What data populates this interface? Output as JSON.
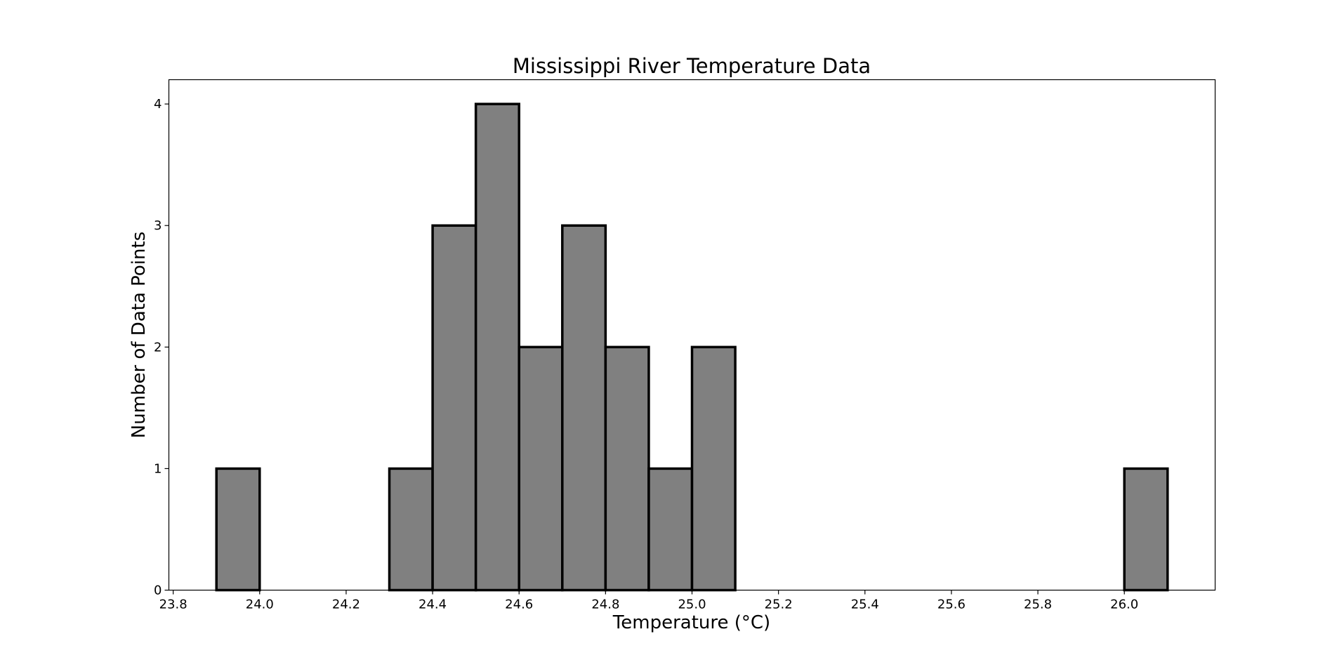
{
  "chart_data": {
    "type": "histogram",
    "title": "Mississippi River Temperature Data",
    "xlabel": "Temperature (°C)",
    "ylabel": "Number of Data Points",
    "bin_width": 0.1,
    "bins": [
      {
        "start": 23.9,
        "end": 24.0,
        "count": 1
      },
      {
        "start": 24.0,
        "end": 24.1,
        "count": 0
      },
      {
        "start": 24.1,
        "end": 24.2,
        "count": 0
      },
      {
        "start": 24.2,
        "end": 24.3,
        "count": 0
      },
      {
        "start": 24.3,
        "end": 24.4,
        "count": 1
      },
      {
        "start": 24.4,
        "end": 24.5,
        "count": 3
      },
      {
        "start": 24.5,
        "end": 24.6,
        "count": 4
      },
      {
        "start": 24.6,
        "end": 24.7,
        "count": 2
      },
      {
        "start": 24.7,
        "end": 24.8,
        "count": 3
      },
      {
        "start": 24.8,
        "end": 24.9,
        "count": 2
      },
      {
        "start": 24.9,
        "end": 25.0,
        "count": 1
      },
      {
        "start": 25.0,
        "end": 25.1,
        "count": 2
      },
      {
        "start": 25.1,
        "end": 25.2,
        "count": 0
      },
      {
        "start": 25.2,
        "end": 25.3,
        "count": 0
      },
      {
        "start": 25.3,
        "end": 25.4,
        "count": 0
      },
      {
        "start": 25.4,
        "end": 25.5,
        "count": 0
      },
      {
        "start": 25.5,
        "end": 25.6,
        "count": 0
      },
      {
        "start": 25.6,
        "end": 25.7,
        "count": 0
      },
      {
        "start": 25.7,
        "end": 25.8,
        "count": 0
      },
      {
        "start": 25.8,
        "end": 25.9,
        "count": 0
      },
      {
        "start": 25.9,
        "end": 26.0,
        "count": 0
      },
      {
        "start": 26.0,
        "end": 26.1,
        "count": 1
      }
    ],
    "xlim": [
      23.79,
      26.21
    ],
    "ylim": [
      0,
      4.2
    ],
    "xticks": [
      "23.8",
      "24.0",
      "24.2",
      "24.4",
      "24.6",
      "24.8",
      "25.0",
      "25.2",
      "25.4",
      "25.6",
      "25.8",
      "26.0"
    ],
    "yticks": [
      "0",
      "1",
      "2",
      "3",
      "4"
    ],
    "bar_fill_color": "#808080",
    "bar_edge_color": "#000000",
    "grid": false,
    "legend": "none"
  }
}
